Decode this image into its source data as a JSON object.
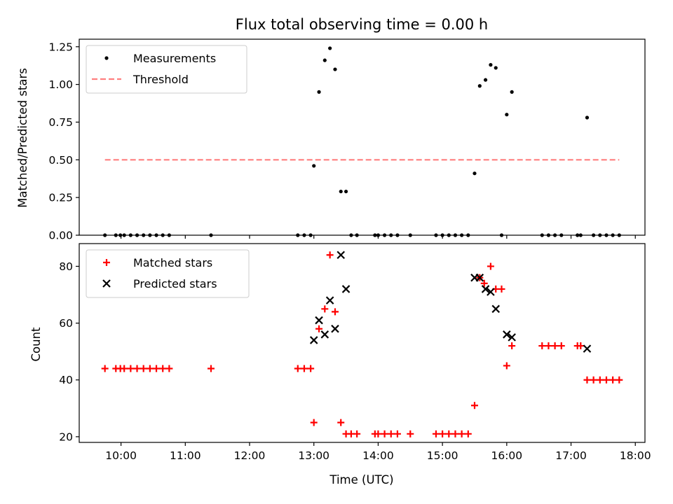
{
  "figure_title": "Flux total observing time = 0.00 h",
  "chart_data": [
    {
      "type": "scatter",
      "ylabel": "Matched/Predicted stars",
      "xlabel": "",
      "xlim": [
        9.35,
        18.15
      ],
      "ylim": [
        0,
        1.3
      ],
      "x_ticks": [
        10,
        11,
        12,
        13,
        14,
        15,
        16,
        17,
        18
      ],
      "y_ticks": [
        0.0,
        0.25,
        0.5,
        0.75,
        1.0,
        1.25
      ],
      "y_tick_labels": [
        "0.00",
        "0.25",
        "0.50",
        "0.75",
        "1.00",
        "1.25"
      ],
      "legend": {
        "placement": "top-left",
        "entries": [
          "Measurements",
          "Threshold"
        ]
      },
      "series": [
        {
          "name": "Measurements",
          "marker": "dot",
          "color": "#000000",
          "points": [
            [
              9.75,
              0
            ],
            [
              9.92,
              0
            ],
            [
              9.99,
              0
            ],
            [
              10.05,
              0
            ],
            [
              10.15,
              0
            ],
            [
              10.25,
              0
            ],
            [
              10.35,
              0
            ],
            [
              10.45,
              0
            ],
            [
              10.55,
              0
            ],
            [
              10.65,
              0
            ],
            [
              10.75,
              0
            ],
            [
              11.4,
              0
            ],
            [
              12.75,
              0
            ],
            [
              12.85,
              0
            ],
            [
              12.95,
              0
            ],
            [
              13.0,
              0.46
            ],
            [
              13.08,
              0.95
            ],
            [
              13.17,
              1.16
            ],
            [
              13.25,
              1.24
            ],
            [
              13.33,
              1.1
            ],
            [
              13.42,
              0.29
            ],
            [
              13.5,
              0.29
            ],
            [
              13.58,
              0
            ],
            [
              13.67,
              0
            ],
            [
              13.95,
              0
            ],
            [
              14.0,
              0
            ],
            [
              14.1,
              0
            ],
            [
              14.2,
              0
            ],
            [
              14.3,
              0
            ],
            [
              14.5,
              0
            ],
            [
              14.9,
              0
            ],
            [
              15.0,
              0
            ],
            [
              15.1,
              0
            ],
            [
              15.2,
              0
            ],
            [
              15.3,
              0
            ],
            [
              15.4,
              0
            ],
            [
              15.5,
              0.41
            ],
            [
              15.58,
              0.99
            ],
            [
              15.67,
              1.03
            ],
            [
              15.75,
              1.13
            ],
            [
              15.83,
              1.11
            ],
            [
              15.92,
              0
            ],
            [
              16.0,
              0.8
            ],
            [
              16.08,
              0.95
            ],
            [
              16.55,
              0
            ],
            [
              16.65,
              0
            ],
            [
              16.75,
              0
            ],
            [
              16.85,
              0
            ],
            [
              17.1,
              0
            ],
            [
              17.15,
              0
            ],
            [
              17.25,
              0.78
            ],
            [
              17.35,
              0
            ],
            [
              17.45,
              0
            ],
            [
              17.55,
              0
            ],
            [
              17.65,
              0
            ],
            [
              17.75,
              0
            ]
          ]
        },
        {
          "name": "Threshold",
          "style": "dashed",
          "color": "#ff7f7f",
          "points": [
            [
              9.75,
              0.5
            ],
            [
              17.75,
              0.5
            ]
          ]
        }
      ]
    },
    {
      "type": "scatter",
      "ylabel": "Count",
      "xlabel": "Time (UTC)",
      "xlim": [
        9.35,
        18.15
      ],
      "ylim": [
        18,
        88
      ],
      "x_ticks": [
        10,
        11,
        12,
        13,
        14,
        15,
        16,
        17,
        18
      ],
      "x_tick_labels": [
        "10:00",
        "11:00",
        "12:00",
        "13:00",
        "14:00",
        "15:00",
        "16:00",
        "17:00",
        "18:00"
      ],
      "y_ticks": [
        20,
        40,
        60,
        80
      ],
      "y_tick_labels": [
        "20",
        "40",
        "60",
        "80"
      ],
      "legend": {
        "placement": "top-left",
        "entries": [
          "Matched stars",
          "Predicted stars"
        ]
      },
      "series": [
        {
          "name": "Matched stars",
          "marker": "plus",
          "color": "#ff0000",
          "points": [
            [
              9.75,
              44
            ],
            [
              9.92,
              44
            ],
            [
              9.99,
              44
            ],
            [
              10.05,
              44
            ],
            [
              10.15,
              44
            ],
            [
              10.25,
              44
            ],
            [
              10.35,
              44
            ],
            [
              10.45,
              44
            ],
            [
              10.55,
              44
            ],
            [
              10.65,
              44
            ],
            [
              10.75,
              44
            ],
            [
              11.4,
              44
            ],
            [
              12.75,
              44
            ],
            [
              12.85,
              44
            ],
            [
              12.95,
              44
            ],
            [
              13.0,
              25
            ],
            [
              13.08,
              58
            ],
            [
              13.17,
              65
            ],
            [
              13.25,
              84
            ],
            [
              13.33,
              64
            ],
            [
              13.42,
              25
            ],
            [
              13.5,
              21
            ],
            [
              13.58,
              21
            ],
            [
              13.67,
              21
            ],
            [
              13.95,
              21
            ],
            [
              14.0,
              21
            ],
            [
              14.1,
              21
            ],
            [
              14.2,
              21
            ],
            [
              14.3,
              21
            ],
            [
              14.5,
              21
            ],
            [
              14.9,
              21
            ],
            [
              15.0,
              21
            ],
            [
              15.1,
              21
            ],
            [
              15.2,
              21
            ],
            [
              15.3,
              21
            ],
            [
              15.4,
              21
            ],
            [
              15.5,
              31
            ],
            [
              15.58,
              76
            ],
            [
              15.65,
              74
            ],
            [
              15.75,
              80
            ],
            [
              15.83,
              72
            ],
            [
              15.92,
              72
            ],
            [
              16.0,
              45
            ],
            [
              16.08,
              52
            ],
            [
              16.55,
              52
            ],
            [
              16.65,
              52
            ],
            [
              16.75,
              52
            ],
            [
              16.85,
              52
            ],
            [
              17.1,
              52
            ],
            [
              17.15,
              52
            ],
            [
              17.25,
              40
            ],
            [
              17.35,
              40
            ],
            [
              17.45,
              40
            ],
            [
              17.55,
              40
            ],
            [
              17.65,
              40
            ],
            [
              17.75,
              40
            ]
          ]
        },
        {
          "name": "Predicted stars",
          "marker": "x",
          "color": "#000000",
          "points": [
            [
              13.0,
              54
            ],
            [
              13.08,
              61
            ],
            [
              13.17,
              56
            ],
            [
              13.25,
              68
            ],
            [
              13.33,
              58
            ],
            [
              13.42,
              84
            ],
            [
              13.5,
              72
            ],
            [
              15.5,
              76
            ],
            [
              15.58,
              76
            ],
            [
              15.67,
              72
            ],
            [
              15.75,
              71
            ],
            [
              15.83,
              65
            ],
            [
              16.0,
              56
            ],
            [
              16.08,
              55
            ],
            [
              17.25,
              51
            ]
          ]
        }
      ]
    }
  ]
}
